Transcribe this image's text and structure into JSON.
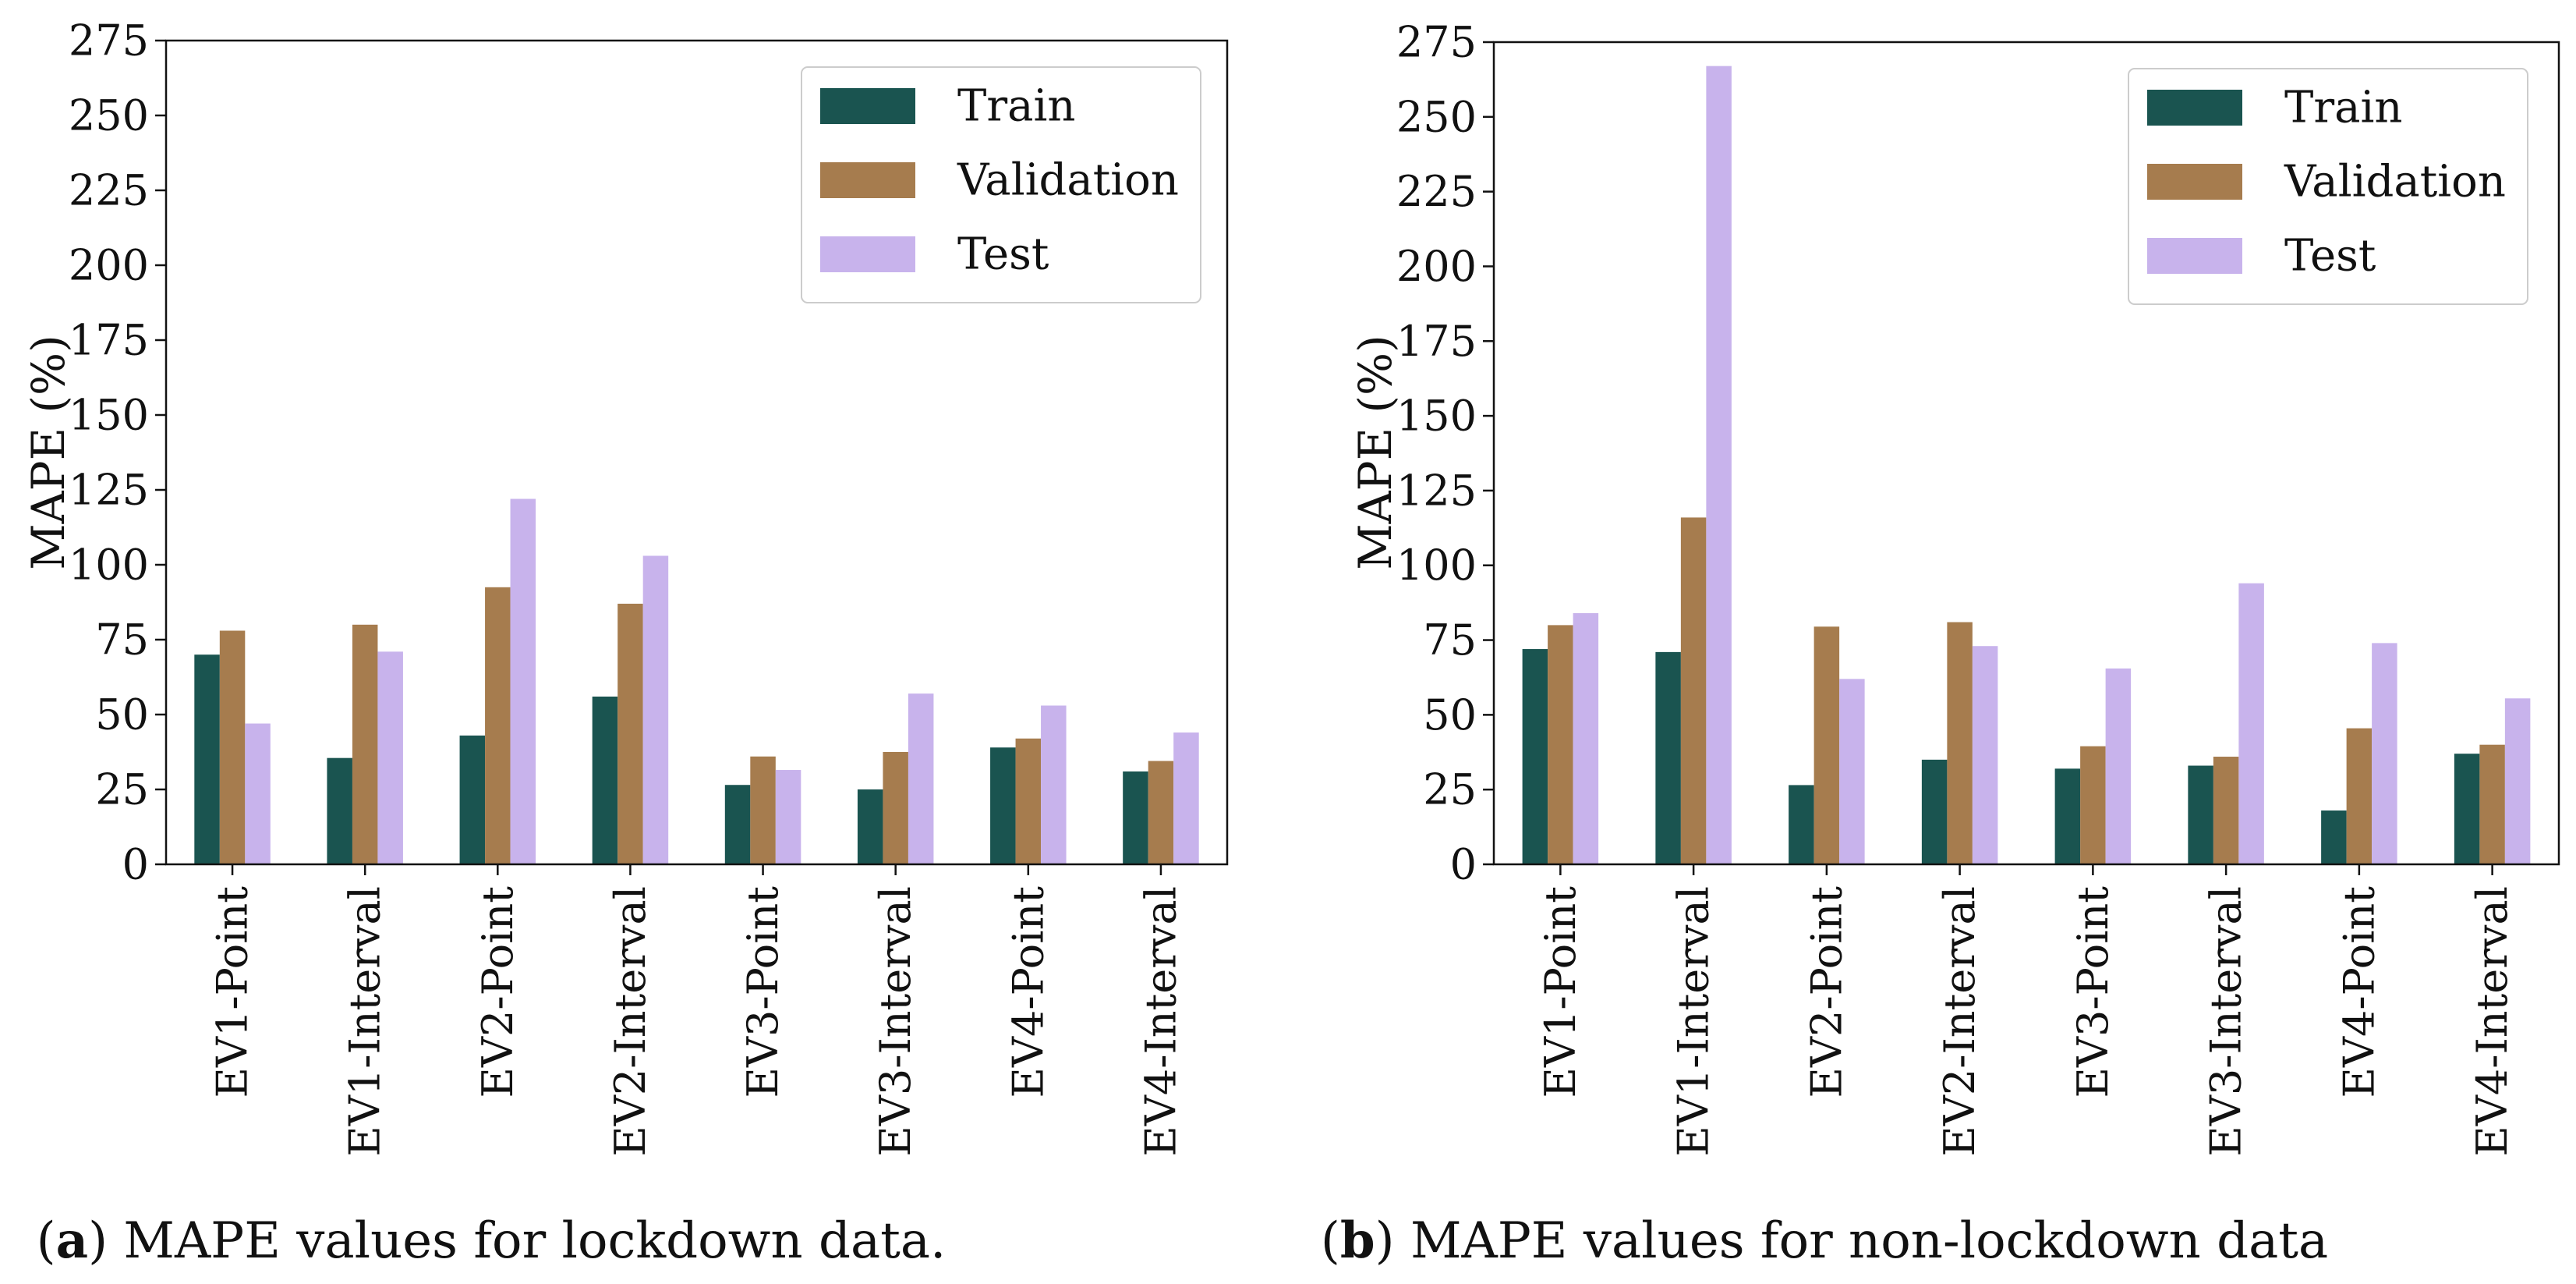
{
  "chart_data": [
    {
      "type": "bar",
      "caption_letter": "a",
      "caption_text": " MAPE values for lockdown data.",
      "ylabel": "MAPE (%)",
      "xlabel": "",
      "ylim": [
        0,
        275
      ],
      "yticks": [
        0,
        25,
        50,
        75,
        100,
        125,
        150,
        175,
        200,
        225,
        250,
        275
      ],
      "legend_position": "top-right",
      "grid": false,
      "categories": [
        "EV1-Point",
        "EV1-Interval",
        "EV2-Point",
        "EV2-Interval",
        "EV3-Point",
        "EV3-Interval",
        "EV4-Point",
        "EV4-Interval"
      ],
      "series": [
        {
          "name": "Train",
          "color": "#1a5450",
          "values": [
            70,
            35.5,
            43,
            56,
            26.5,
            25,
            39,
            31
          ]
        },
        {
          "name": "Validation",
          "color": "#a67c4e",
          "values": [
            78,
            80,
            92.5,
            87,
            36,
            37.5,
            42,
            34.5
          ]
        },
        {
          "name": "Test",
          "color": "#c8b3ec",
          "values": [
            47,
            71,
            122,
            103,
            31.5,
            57,
            53,
            44
          ]
        }
      ]
    },
    {
      "type": "bar",
      "caption_letter": "b",
      "caption_text": " MAPE values for non-lockdown data",
      "ylabel": "MAPE (%)",
      "xlabel": "",
      "ylim": [
        0,
        275
      ],
      "yticks": [
        0,
        25,
        50,
        75,
        100,
        125,
        150,
        175,
        200,
        225,
        250,
        275
      ],
      "legend_position": "top-right",
      "grid": false,
      "categories": [
        "EV1-Point",
        "EV1-Interval",
        "EV2-Point",
        "EV2-Interval",
        "EV3-Point",
        "EV3-Interval",
        "EV4-Point",
        "EV4-Interval"
      ],
      "series": [
        {
          "name": "Train",
          "color": "#1a5450",
          "values": [
            72,
            71,
            26.5,
            35,
            32,
            33,
            18,
            37
          ]
        },
        {
          "name": "Validation",
          "color": "#a67c4e",
          "values": [
            80,
            116,
            79.5,
            81,
            39.5,
            36,
            45.5,
            40
          ]
        },
        {
          "name": "Test",
          "color": "#c8b3ec",
          "values": [
            84,
            267,
            62,
            73,
            65.5,
            94,
            74,
            55.5
          ]
        }
      ]
    }
  ]
}
